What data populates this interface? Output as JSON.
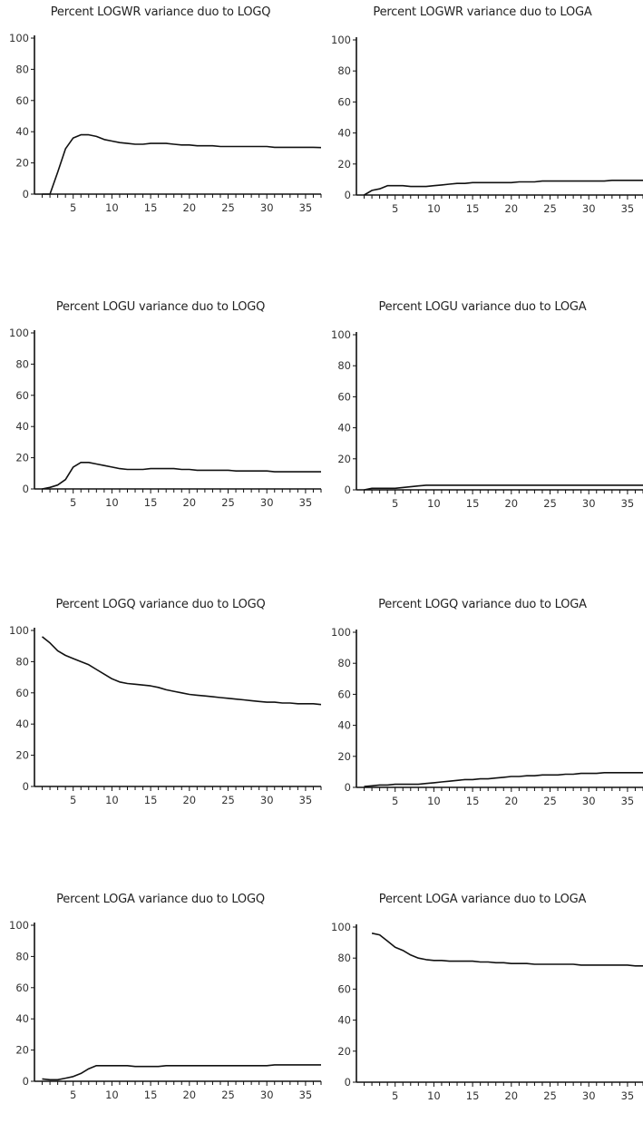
{
  "chart_data": [
    {
      "type": "line",
      "title": "Percent LOGWR variance duo to LOGQ",
      "ylim": [
        0,
        100
      ],
      "xlim": [
        0,
        37
      ],
      "yticks": [
        "0",
        "20",
        "40",
        "60",
        "80",
        "100"
      ],
      "xticks": [
        "5",
        "10",
        "15",
        "20",
        "25",
        "30",
        "35"
      ],
      "grid": false,
      "series": [
        {
          "color": "#111111",
          "x": [
            1,
            2,
            3,
            4,
            5,
            6,
            7,
            8,
            9,
            10,
            11,
            12,
            13,
            14,
            15,
            16,
            17,
            18,
            19,
            20,
            21,
            22,
            23,
            24,
            25,
            26,
            27,
            28,
            29,
            30,
            31,
            32,
            33,
            34,
            35,
            36,
            37
          ],
          "values": [
            0,
            0,
            14,
            29,
            36,
            38,
            38,
            37,
            35,
            34,
            33,
            32.5,
            32,
            32,
            32.5,
            32.5,
            32.5,
            32,
            31.5,
            31.5,
            31,
            31,
            31,
            30.5,
            30.5,
            30.5,
            30.5,
            30.5,
            30.5,
            30.5,
            30,
            30,
            30,
            30,
            30,
            30,
            29.8
          ]
        }
      ]
    },
    {
      "type": "line",
      "title": "Percent LOGWR variance duo to LOGA",
      "ylim": [
        0,
        100
      ],
      "xlim": [
        0,
        37
      ],
      "yticks": [
        "0",
        "20",
        "40",
        "60",
        "80",
        "100"
      ],
      "xticks": [
        "5",
        "10",
        "15",
        "20",
        "25",
        "30",
        "35"
      ],
      "grid": false,
      "series": [
        {
          "color": "#111111",
          "x": [
            1,
            2,
            3,
            4,
            5,
            6,
            7,
            8,
            9,
            10,
            11,
            12,
            13,
            14,
            15,
            16,
            17,
            18,
            19,
            20,
            21,
            22,
            23,
            24,
            25,
            26,
            27,
            28,
            29,
            30,
            31,
            32,
            33,
            34,
            35,
            36,
            37
          ],
          "values": [
            0,
            3,
            4,
            6,
            6,
            6,
            5.5,
            5.5,
            5.5,
            6,
            6.5,
            7,
            7.5,
            7.5,
            8,
            8,
            8,
            8,
            8,
            8,
            8.5,
            8.5,
            8.5,
            9,
            9,
            9,
            9,
            9,
            9,
            9,
            9,
            9,
            9.5,
            9.5,
            9.5,
            9.5,
            9.5
          ]
        }
      ]
    },
    {
      "type": "line",
      "title": "Percent LOGU variance duo to LOGQ",
      "ylim": [
        0,
        100
      ],
      "xlim": [
        0,
        37
      ],
      "yticks": [
        "0",
        "20",
        "40",
        "60",
        "80",
        "100"
      ],
      "xticks": [
        "5",
        "10",
        "15",
        "20",
        "25",
        "30",
        "35"
      ],
      "grid": false,
      "series": [
        {
          "color": "#111111",
          "x": [
            1,
            2,
            3,
            4,
            5,
            6,
            7,
            8,
            9,
            10,
            11,
            12,
            13,
            14,
            15,
            16,
            17,
            18,
            19,
            20,
            21,
            22,
            23,
            24,
            25,
            26,
            27,
            28,
            29,
            30,
            31,
            32,
            33,
            34,
            35,
            36,
            37
          ],
          "values": [
            0,
            1,
            2.5,
            6,
            14,
            17,
            17,
            16,
            15,
            14,
            13,
            12.5,
            12.5,
            12.5,
            13,
            13,
            13,
            13,
            12.5,
            12.5,
            12,
            12,
            12,
            12,
            12,
            11.5,
            11.5,
            11.5,
            11.5,
            11.5,
            11,
            11,
            11,
            11,
            11,
            11,
            11
          ]
        }
      ]
    },
    {
      "type": "line",
      "title": "Percent LOGU variance duo to LOGA",
      "ylim": [
        0,
        100
      ],
      "xlim": [
        0,
        37
      ],
      "yticks": [
        "0",
        "20",
        "40",
        "60",
        "80",
        "100"
      ],
      "xticks": [
        "5",
        "10",
        "15",
        "20",
        "25",
        "30",
        "35"
      ],
      "grid": false,
      "series": [
        {
          "color": "#111111",
          "x": [
            1,
            2,
            3,
            4,
            5,
            6,
            7,
            8,
            9,
            10,
            11,
            12,
            13,
            14,
            15,
            16,
            17,
            18,
            19,
            20,
            21,
            22,
            23,
            24,
            25,
            26,
            27,
            28,
            29,
            30,
            31,
            32,
            33,
            34,
            35,
            36,
            37
          ],
          "values": [
            0,
            1,
            1,
            1,
            1,
            1.5,
            2,
            2.5,
            3,
            3,
            3,
            3,
            3,
            3,
            3,
            3,
            3,
            3,
            3,
            3,
            3,
            3,
            3,
            3,
            3,
            3,
            3,
            3,
            3,
            3,
            3,
            3,
            3,
            3,
            3,
            3,
            3
          ]
        }
      ]
    },
    {
      "type": "line",
      "title": "Percent LOGQ variance duo to LOGQ",
      "ylim": [
        0,
        100
      ],
      "xlim": [
        0,
        37
      ],
      "yticks": [
        "0",
        "20",
        "40",
        "60",
        "80",
        "100"
      ],
      "xticks": [
        "5",
        "10",
        "15",
        "20",
        "25",
        "30",
        "35"
      ],
      "grid": false,
      "series": [
        {
          "color": "#111111",
          "x": [
            1,
            2,
            3,
            4,
            5,
            6,
            7,
            8,
            9,
            10,
            11,
            12,
            13,
            14,
            15,
            16,
            17,
            18,
            19,
            20,
            21,
            22,
            23,
            24,
            25,
            26,
            27,
            28,
            29,
            30,
            31,
            32,
            33,
            34,
            35,
            36,
            37
          ],
          "values": [
            96,
            92,
            87,
            84,
            82,
            80,
            78,
            75,
            72,
            69,
            67,
            66,
            65.5,
            65,
            64.5,
            63.5,
            62,
            61,
            60,
            59,
            58.5,
            58,
            57.5,
            57,
            56.5,
            56,
            55.5,
            55,
            54.5,
            54,
            54,
            53.5,
            53.5,
            53,
            53,
            53,
            52.5
          ]
        }
      ]
    },
    {
      "type": "line",
      "title": "Percent LOGQ variance duo to LOGA",
      "ylim": [
        0,
        100
      ],
      "xlim": [
        0,
        37
      ],
      "yticks": [
        "0",
        "20",
        "40",
        "60",
        "80",
        "100"
      ],
      "xticks": [
        "5",
        "10",
        "15",
        "20",
        "25",
        "30",
        "35"
      ],
      "grid": false,
      "series": [
        {
          "color": "#111111",
          "x": [
            1,
            2,
            3,
            4,
            5,
            6,
            7,
            8,
            9,
            10,
            11,
            12,
            13,
            14,
            15,
            16,
            17,
            18,
            19,
            20,
            21,
            22,
            23,
            24,
            25,
            26,
            27,
            28,
            29,
            30,
            31,
            32,
            33,
            34,
            35,
            36,
            37
          ],
          "values": [
            0.5,
            1,
            1.5,
            1.5,
            2,
            2,
            2,
            2,
            2.5,
            3,
            3.5,
            4,
            4.5,
            5,
            5,
            5.5,
            5.5,
            6,
            6.5,
            7,
            7,
            7.5,
            7.5,
            8,
            8,
            8,
            8.5,
            8.5,
            9,
            9,
            9,
            9.5,
            9.5,
            9.5,
            9.5,
            9.5,
            9.5
          ]
        }
      ]
    },
    {
      "type": "line",
      "title": "Percent LOGA variance duo to LOGQ",
      "ylim": [
        0,
        100
      ],
      "xlim": [
        0,
        37
      ],
      "yticks": [
        "0",
        "20",
        "40",
        "60",
        "80",
        "100"
      ],
      "xticks": [
        "5",
        "10",
        "15",
        "20",
        "25",
        "30",
        "35"
      ],
      "grid": false,
      "series": [
        {
          "color": "#111111",
          "x": [
            1,
            2,
            3,
            4,
            5,
            6,
            7,
            8,
            9,
            10,
            11,
            12,
            13,
            14,
            15,
            16,
            17,
            18,
            19,
            20,
            21,
            22,
            23,
            24,
            25,
            26,
            27,
            28,
            29,
            30,
            31,
            32,
            33,
            34,
            35,
            36,
            37
          ],
          "values": [
            1.5,
            1,
            1,
            2,
            3,
            5,
            8,
            10,
            10,
            10,
            10,
            10,
            9.5,
            9.5,
            9.5,
            9.5,
            10,
            10,
            10,
            10,
            10,
            10,
            10,
            10,
            10,
            10,
            10,
            10,
            10,
            10,
            10.5,
            10.5,
            10.5,
            10.5,
            10.5,
            10.5,
            10.5
          ]
        }
      ]
    },
    {
      "type": "line",
      "title": "Percent LOGA variance duo to LOGA",
      "ylim": [
        0,
        100
      ],
      "xlim": [
        0,
        37
      ],
      "yticks": [
        "0",
        "20",
        "40",
        "60",
        "80",
        "100"
      ],
      "xticks": [
        "5",
        "10",
        "15",
        "20",
        "25",
        "30",
        "35"
      ],
      "grid": false,
      "series": [
        {
          "color": "#111111",
          "x": [
            2,
            3,
            4,
            5,
            6,
            7,
            8,
            9,
            10,
            11,
            12,
            13,
            14,
            15,
            16,
            17,
            18,
            19,
            20,
            21,
            22,
            23,
            24,
            25,
            26,
            27,
            28,
            29,
            30,
            31,
            32,
            33,
            34,
            35,
            36,
            37
          ],
          "values": [
            96,
            95,
            91,
            87,
            85,
            82,
            80,
            79,
            78.5,
            78.5,
            78,
            78,
            78,
            78,
            77.5,
            77.5,
            77,
            77,
            76.5,
            76.5,
            76.5,
            76,
            76,
            76,
            76,
            76,
            76,
            75.5,
            75.5,
            75.5,
            75.5,
            75.5,
            75.5,
            75.5,
            75,
            75
          ]
        }
      ]
    }
  ]
}
